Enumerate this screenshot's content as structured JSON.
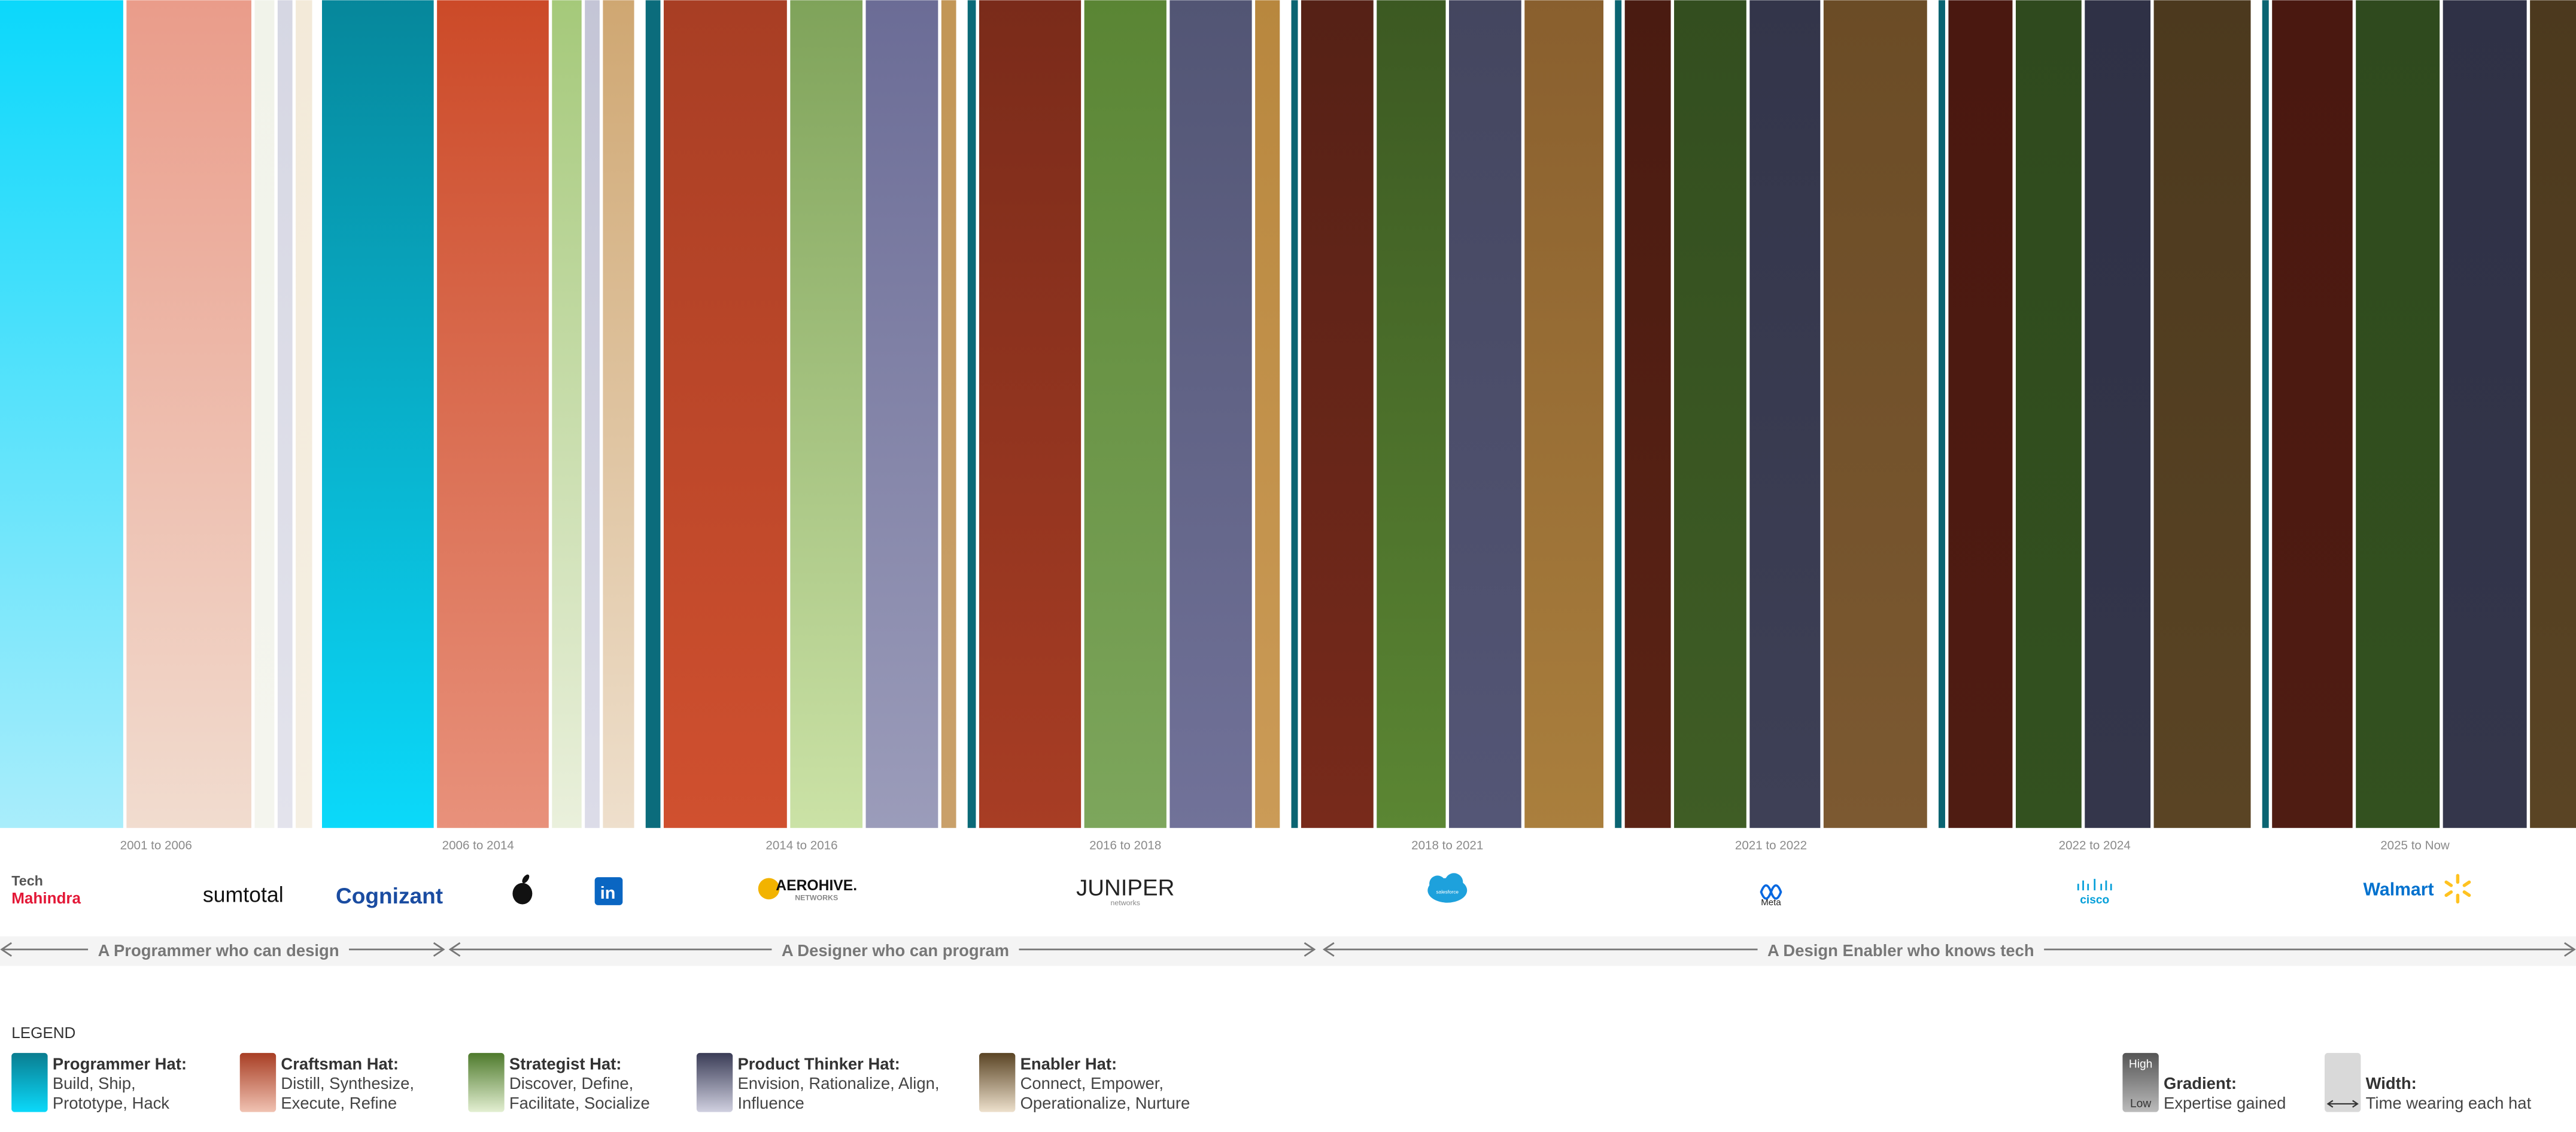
{
  "periods": [
    {
      "label": "2001 to 2006"
    },
    {
      "label": "2006 to 2014"
    },
    {
      "label": "2014 to 2016"
    },
    {
      "label": "2016 to 2018"
    },
    {
      "label": "2018 to 2021"
    },
    {
      "label": "2021 to 2022"
    },
    {
      "label": "2022 to 2024"
    },
    {
      "label": "2025 to Now"
    }
  ],
  "logos": [
    [
      "Tech",
      "Mahindra"
    ],
    [
      "sumtotal"
    ],
    [
      "Cognizant"
    ],
    [
      "in"
    ],
    [
      "AEROHIVE.",
      "NETWORKS"
    ],
    [
      "JUNIPER",
      "networks"
    ],
    [
      "salesforce"
    ],
    [
      "Meta"
    ],
    [
      "cisco"
    ],
    [
      "Walmart"
    ]
  ],
  "phases": [
    "A Programmer who can design",
    "A Designer who can program",
    "A Design Enabler who knows tech"
  ],
  "legend": {
    "title": "LEGEND",
    "hats": [
      {
        "name": "Programmer Hat:",
        "lines": [
          "Build, Ship,",
          "Prototype, Hack"
        ]
      },
      {
        "name": "Craftsman Hat:",
        "lines": [
          "Distill, Synthesize,",
          "Execute, Refine"
        ]
      },
      {
        "name": "Strategist Hat:",
        "lines": [
          "Discover, Define,",
          "Facilitate, Socialize"
        ]
      },
      {
        "name": "Product Thinker Hat:",
        "lines": [
          "Envision, Rationalize, Align,",
          "Influence"
        ]
      },
      {
        "name": "Enabler Hat:",
        "lines": [
          "Connect, Empower,",
          "Operationalize, Nurture"
        ]
      }
    ],
    "gradient": {
      "high": "High",
      "low": "Low",
      "name": "Gradient:",
      "desc": "Expertise gained"
    },
    "width": {
      "name": "Width:",
      "desc": "Time wearing each hat"
    }
  }
}
